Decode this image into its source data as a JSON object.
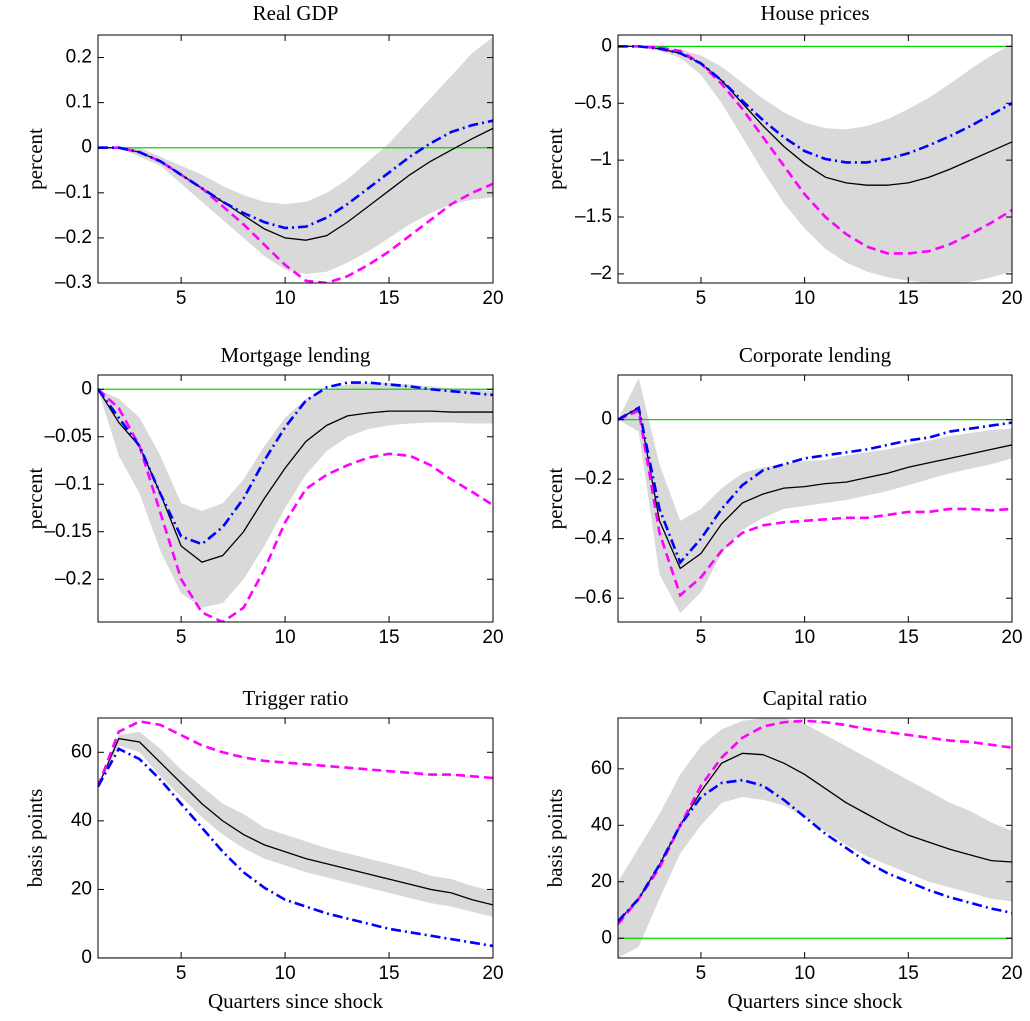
{
  "chart_data": [
    {
      "type": "line",
      "title": "Real GDP",
      "ylabel": "percent",
      "x": [
        1,
        2,
        3,
        4,
        5,
        6,
        7,
        8,
        9,
        10,
        11,
        12,
        13,
        14,
        15,
        16,
        17,
        18,
        19,
        20
      ],
      "xlim": [
        1,
        20
      ],
      "xticks": [
        5,
        10,
        15,
        20
      ],
      "ylim": [
        -0.3,
        0.25
      ],
      "yticks": [
        -0.3,
        -0.2,
        -0.1,
        0,
        0.1,
        0.2
      ],
      "hline": {
        "y": 0,
        "color": "#00dd00"
      },
      "band": {
        "color": "#d9d9d9",
        "lower": [
          0,
          0,
          -0.02,
          -0.04,
          -0.08,
          -0.12,
          -0.16,
          -0.2,
          -0.24,
          -0.27,
          -0.28,
          -0.275,
          -0.255,
          -0.23,
          -0.2,
          -0.17,
          -0.145,
          -0.125,
          -0.115,
          -0.11
        ],
        "upper": [
          0,
          0,
          0,
          -0.02,
          -0.04,
          -0.06,
          -0.085,
          -0.105,
          -0.12,
          -0.125,
          -0.12,
          -0.1,
          -0.07,
          -0.03,
          0.01,
          0.06,
          0.11,
          0.16,
          0.21,
          0.245
        ]
      },
      "series": [
        {
          "color": "#000000",
          "dash": "solid",
          "values": [
            0,
            0,
            -0.01,
            -0.03,
            -0.06,
            -0.09,
            -0.12,
            -0.15,
            -0.18,
            -0.2,
            -0.205,
            -0.195,
            -0.165,
            -0.13,
            -0.095,
            -0.06,
            -0.03,
            -0.005,
            0.02,
            0.043
          ]
        },
        {
          "color": "#ff00ff",
          "dash": "dashed",
          "values": [
            0,
            0,
            -0.01,
            -0.03,
            -0.06,
            -0.09,
            -0.13,
            -0.17,
            -0.215,
            -0.26,
            -0.295,
            -0.3,
            -0.285,
            -0.26,
            -0.23,
            -0.195,
            -0.16,
            -0.125,
            -0.1,
            -0.08
          ]
        },
        {
          "color": "#0000ff",
          "dash": "dashdot",
          "values": [
            0,
            0,
            -0.01,
            -0.03,
            -0.06,
            -0.09,
            -0.12,
            -0.145,
            -0.165,
            -0.178,
            -0.175,
            -0.155,
            -0.125,
            -0.09,
            -0.055,
            -0.02,
            0.01,
            0.035,
            0.05,
            0.06
          ]
        }
      ]
    },
    {
      "type": "line",
      "title": "House prices",
      "ylabel": "percent",
      "x": [
        1,
        2,
        3,
        4,
        5,
        6,
        7,
        8,
        9,
        10,
        11,
        12,
        13,
        14,
        15,
        16,
        17,
        18,
        19,
        20
      ],
      "xlim": [
        1,
        20
      ],
      "xticks": [
        5,
        10,
        15,
        20
      ],
      "ylim": [
        -2.08,
        0.1
      ],
      "yticks": [
        -2,
        -1.5,
        -1,
        -0.5,
        0
      ],
      "hline": {
        "y": 0,
        "color": "#00dd00"
      },
      "band": {
        "color": "#d9d9d9",
        "lower": [
          0,
          -0.01,
          -0.04,
          -0.1,
          -0.25,
          -0.5,
          -0.8,
          -1.1,
          -1.38,
          -1.6,
          -1.78,
          -1.9,
          -1.98,
          -2.03,
          -2.06,
          -2.08,
          -2.08,
          -2.07,
          -2.03,
          -1.98
        ],
        "upper": [
          0,
          0,
          0,
          -0.03,
          -0.08,
          -0.18,
          -0.32,
          -0.46,
          -0.58,
          -0.67,
          -0.72,
          -0.73,
          -0.7,
          -0.64,
          -0.55,
          -0.45,
          -0.33,
          -0.2,
          -0.08,
          0.02
        ]
      },
      "series": [
        {
          "color": "#000000",
          "dash": "solid",
          "values": [
            0,
            0,
            -0.02,
            -0.06,
            -0.15,
            -0.3,
            -0.5,
            -0.7,
            -0.88,
            -1.03,
            -1.15,
            -1.2,
            -1.22,
            -1.22,
            -1.2,
            -1.15,
            -1.08,
            -1,
            -0.92,
            -0.84
          ]
        },
        {
          "color": "#ff00ff",
          "dash": "dashed",
          "values": [
            0,
            0,
            -0.01,
            -0.04,
            -0.15,
            -0.33,
            -0.55,
            -0.8,
            -1.05,
            -1.3,
            -1.5,
            -1.65,
            -1.76,
            -1.82,
            -1.82,
            -1.8,
            -1.74,
            -1.65,
            -1.55,
            -1.44
          ]
        },
        {
          "color": "#0000ff",
          "dash": "dashdot",
          "values": [
            0,
            0,
            -0.02,
            -0.06,
            -0.15,
            -0.3,
            -0.48,
            -0.65,
            -0.8,
            -0.92,
            -0.99,
            -1.02,
            -1.02,
            -0.99,
            -0.94,
            -0.87,
            -0.79,
            -0.7,
            -0.6,
            -0.5
          ]
        }
      ]
    },
    {
      "type": "line",
      "title": "Mortgage lending",
      "ylabel": "percent",
      "x": [
        1,
        2,
        3,
        4,
        5,
        6,
        7,
        8,
        9,
        10,
        11,
        12,
        13,
        14,
        15,
        16,
        17,
        18,
        19,
        20
      ],
      "xlim": [
        1,
        20
      ],
      "xticks": [
        5,
        10,
        15,
        20
      ],
      "ylim": [
        -0.245,
        0.015
      ],
      "yticks": [
        -0.2,
        -0.15,
        -0.1,
        -0.05,
        0
      ],
      "hline": {
        "y": 0,
        "color": "#00dd00"
      },
      "band": {
        "color": "#d9d9d9",
        "lower": [
          0,
          -0.07,
          -0.11,
          -0.17,
          -0.215,
          -0.23,
          -0.225,
          -0.2,
          -0.165,
          -0.125,
          -0.09,
          -0.065,
          -0.05,
          -0.042,
          -0.038,
          -0.036,
          -0.035,
          -0.035,
          -0.036,
          -0.036
        ],
        "upper": [
          0,
          -0.01,
          -0.03,
          -0.07,
          -0.12,
          -0.128,
          -0.12,
          -0.095,
          -0.06,
          -0.03,
          -0.01,
          0,
          0.005,
          0.007,
          0.007,
          0.005,
          0.003,
          0.001,
          0,
          -0.002
        ]
      },
      "series": [
        {
          "color": "#000000",
          "dash": "solid",
          "values": [
            0,
            -0.035,
            -0.06,
            -0.11,
            -0.165,
            -0.182,
            -0.175,
            -0.15,
            -0.115,
            -0.083,
            -0.055,
            -0.038,
            -0.028,
            -0.025,
            -0.023,
            -0.023,
            -0.023,
            -0.024,
            -0.024,
            -0.024
          ]
        },
        {
          "color": "#ff00ff",
          "dash": "dashed",
          "values": [
            0,
            -0.02,
            -0.06,
            -0.13,
            -0.2,
            -0.235,
            -0.245,
            -0.23,
            -0.19,
            -0.14,
            -0.105,
            -0.09,
            -0.08,
            -0.072,
            -0.068,
            -0.07,
            -0.08,
            -0.095,
            -0.108,
            -0.122
          ]
        },
        {
          "color": "#0000ff",
          "dash": "dashdot",
          "values": [
            0,
            -0.03,
            -0.06,
            -0.11,
            -0.155,
            -0.163,
            -0.145,
            -0.115,
            -0.075,
            -0.04,
            -0.012,
            0.002,
            0.007,
            0.007,
            0.005,
            0.003,
            0,
            -0.002,
            -0.004,
            -0.006
          ]
        }
      ]
    },
    {
      "type": "line",
      "title": "Corporate lending",
      "ylabel": "percent",
      "x": [
        1,
        2,
        3,
        4,
        5,
        6,
        7,
        8,
        9,
        10,
        11,
        12,
        13,
        14,
        15,
        16,
        17,
        18,
        19,
        20
      ],
      "xlim": [
        1,
        20
      ],
      "xticks": [
        5,
        10,
        15,
        20
      ],
      "ylim": [
        -0.68,
        0.15
      ],
      "yticks": [
        -0.6,
        -0.4,
        -0.2,
        0
      ],
      "hline": {
        "y": 0,
        "color": "#00dd00"
      },
      "band": {
        "color": "#d9d9d9",
        "lower": [
          0,
          -0.04,
          -0.52,
          -0.65,
          -0.58,
          -0.45,
          -0.37,
          -0.33,
          -0.3,
          -0.29,
          -0.28,
          -0.27,
          -0.255,
          -0.24,
          -0.22,
          -0.2,
          -0.18,
          -0.165,
          -0.15,
          -0.13
        ],
        "upper": [
          0,
          0.14,
          -0.15,
          -0.34,
          -0.3,
          -0.23,
          -0.18,
          -0.16,
          -0.15,
          -0.14,
          -0.135,
          -0.12,
          -0.11,
          -0.1,
          -0.085,
          -0.07,
          -0.055,
          -0.045,
          -0.035,
          -0.03
        ]
      },
      "series": [
        {
          "color": "#000000",
          "dash": "solid",
          "values": [
            0,
            0.04,
            -0.34,
            -0.5,
            -0.45,
            -0.35,
            -0.28,
            -0.25,
            -0.23,
            -0.225,
            -0.215,
            -0.21,
            -0.195,
            -0.18,
            -0.16,
            -0.145,
            -0.13,
            -0.115,
            -0.1,
            -0.085
          ]
        },
        {
          "color": "#ff00ff",
          "dash": "dashed",
          "values": [
            0,
            0.03,
            -0.38,
            -0.59,
            -0.53,
            -0.44,
            -0.38,
            -0.355,
            -0.345,
            -0.34,
            -0.335,
            -0.33,
            -0.33,
            -0.32,
            -0.31,
            -0.31,
            -0.3,
            -0.3,
            -0.305,
            -0.3
          ]
        },
        {
          "color": "#0000ff",
          "dash": "dashdot",
          "values": [
            0,
            0.04,
            -0.3,
            -0.48,
            -0.4,
            -0.3,
            -0.22,
            -0.17,
            -0.15,
            -0.13,
            -0.12,
            -0.11,
            -0.1,
            -0.085,
            -0.07,
            -0.06,
            -0.04,
            -0.03,
            -0.02,
            -0.01
          ]
        }
      ]
    },
    {
      "type": "line",
      "title": "Trigger ratio",
      "ylabel": "basis points",
      "xlabel": "Quarters since shock",
      "x": [
        1,
        2,
        3,
        4,
        5,
        6,
        7,
        8,
        9,
        10,
        11,
        12,
        13,
        14,
        15,
        16,
        17,
        18,
        19,
        20
      ],
      "xlim": [
        1,
        20
      ],
      "xticks": [
        5,
        10,
        15,
        20
      ],
      "ylim": [
        0,
        70
      ],
      "yticks": [
        0,
        20,
        40,
        60
      ],
      "hline": {
        "y": 0,
        "color": "#00dd00"
      },
      "band": {
        "color": "#d9d9d9",
        "lower": [
          50,
          62,
          60,
          53,
          47,
          41,
          36,
          32,
          29,
          27,
          25,
          23.5,
          22,
          20.5,
          19,
          17.5,
          16,
          15,
          13.5,
          12
        ],
        "upper": [
          50,
          65,
          66,
          61,
          55,
          50,
          45,
          42,
          38,
          36,
          34,
          32,
          30.5,
          29,
          27.5,
          26,
          24,
          23,
          21,
          19.5
        ]
      },
      "series": [
        {
          "color": "#000000",
          "dash": "solid",
          "values": [
            50,
            64,
            63,
            57,
            51,
            45,
            40,
            36,
            33,
            31,
            29,
            27.5,
            26,
            24.5,
            23,
            21.5,
            20,
            19,
            17,
            15.5
          ]
        },
        {
          "color": "#ff00ff",
          "dash": "dashed",
          "values": [
            50,
            66,
            69,
            68,
            65,
            62,
            60,
            58.5,
            57.5,
            57,
            56.5,
            56,
            55.5,
            55,
            54.5,
            54,
            53.5,
            53.5,
            53,
            52.5
          ]
        },
        {
          "color": "#0000ff",
          "dash": "dashdot",
          "values": [
            50,
            61,
            58,
            52,
            45,
            38,
            31,
            25,
            20.5,
            17,
            15,
            13,
            11.5,
            10,
            8.5,
            7.5,
            6.5,
            5.5,
            4.5,
            3.5
          ]
        }
      ]
    },
    {
      "type": "line",
      "title": "Capital ratio",
      "ylabel": "basis points",
      "xlabel": "Quarters since shock",
      "x": [
        1,
        2,
        3,
        4,
        5,
        6,
        7,
        8,
        9,
        10,
        11,
        12,
        13,
        14,
        15,
        16,
        17,
        18,
        19,
        20
      ],
      "xlim": [
        1,
        20
      ],
      "xticks": [
        5,
        10,
        15,
        20
      ],
      "ylim": [
        -7,
        78
      ],
      "yticks": [
        0,
        20,
        40,
        60
      ],
      "hline": {
        "y": 0,
        "color": "#00dd00"
      },
      "band": {
        "color": "#d9d9d9",
        "lower": [
          -7,
          -3,
          14,
          30,
          40,
          48,
          50,
          49,
          47,
          43,
          38,
          33,
          29,
          26,
          23,
          20,
          18,
          16,
          14,
          13
        ],
        "upper": [
          20,
          32,
          44,
          58,
          68,
          74,
          77,
          78,
          78,
          76,
          72,
          68,
          64,
          60,
          56,
          52,
          48,
          45,
          41,
          38
        ]
      },
      "series": [
        {
          "color": "#000000",
          "dash": "solid",
          "values": [
            6,
            14,
            26,
            40,
            52,
            62,
            65.5,
            65,
            62,
            58,
            53,
            48,
            44,
            40,
            36.5,
            34,
            31.5,
            29.5,
            27.5,
            27
          ]
        },
        {
          "color": "#ff00ff",
          "dash": "dashed",
          "values": [
            5,
            14,
            25,
            40,
            54,
            64,
            71,
            75,
            76.5,
            77,
            76.5,
            75.5,
            74,
            73,
            72,
            71,
            70,
            69.5,
            68.5,
            67.5
          ]
        },
        {
          "color": "#0000ff",
          "dash": "dashdot",
          "values": [
            6,
            14,
            26,
            40,
            50,
            55,
            56,
            54,
            49,
            43,
            37,
            32,
            27,
            23,
            20,
            17,
            14.5,
            12.5,
            10.5,
            9
          ]
        }
      ]
    }
  ]
}
